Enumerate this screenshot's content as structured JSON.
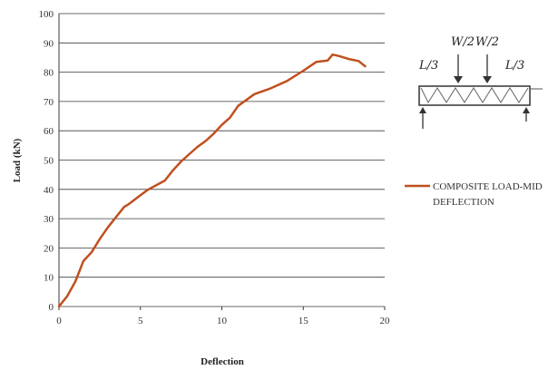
{
  "chart_data": {
    "type": "line",
    "title": "",
    "xlabel": "Deflection",
    "ylabel": "Load (kN)",
    "xlim": [
      0,
      20
    ],
    "ylim": [
      0,
      100
    ],
    "xticks": [
      0,
      5,
      10,
      15,
      20
    ],
    "yticks": [
      0,
      10,
      20,
      30,
      40,
      50,
      60,
      70,
      80,
      90,
      100
    ],
    "grid": "horizontal",
    "legend_position": "right",
    "series": [
      {
        "name": "COMPOSITE LOAD-MID DEFLECTION",
        "color": "#c0501e",
        "x": [
          0,
          0.5,
          1.0,
          1.5,
          2.0,
          2.5,
          3.0,
          3.5,
          4.0,
          4.3,
          5.0,
          5.5,
          6.0,
          6.5,
          7.0,
          7.5,
          8.0,
          8.5,
          9.0,
          9.5,
          10.0,
          10.5,
          11.0,
          11.5,
          12.0,
          13.0,
          14.0,
          15.0,
          15.8,
          16.5,
          16.8,
          17.2,
          17.8,
          18.4,
          18.8
        ],
        "y": [
          0,
          3.5,
          8.5,
          15.5,
          18.5,
          23.0,
          27.0,
          30.5,
          34.0,
          35.0,
          38.0,
          40.0,
          41.5,
          43.0,
          46.5,
          49.5,
          52.0,
          54.5,
          56.5,
          59.0,
          62.0,
          64.5,
          68.5,
          70.5,
          72.5,
          74.5,
          77.0,
          80.5,
          83.5,
          84.0,
          86.0,
          85.5,
          84.5,
          83.8,
          82.0
        ]
      }
    ]
  },
  "legend": {
    "line1": "COMPOSITE LOAD-MID",
    "line2": "DEFLECTION"
  },
  "sketch": {
    "label_left": "L/3",
    "label_mid1": "W/2",
    "label_mid2": "W/2",
    "label_right": "L/3"
  }
}
